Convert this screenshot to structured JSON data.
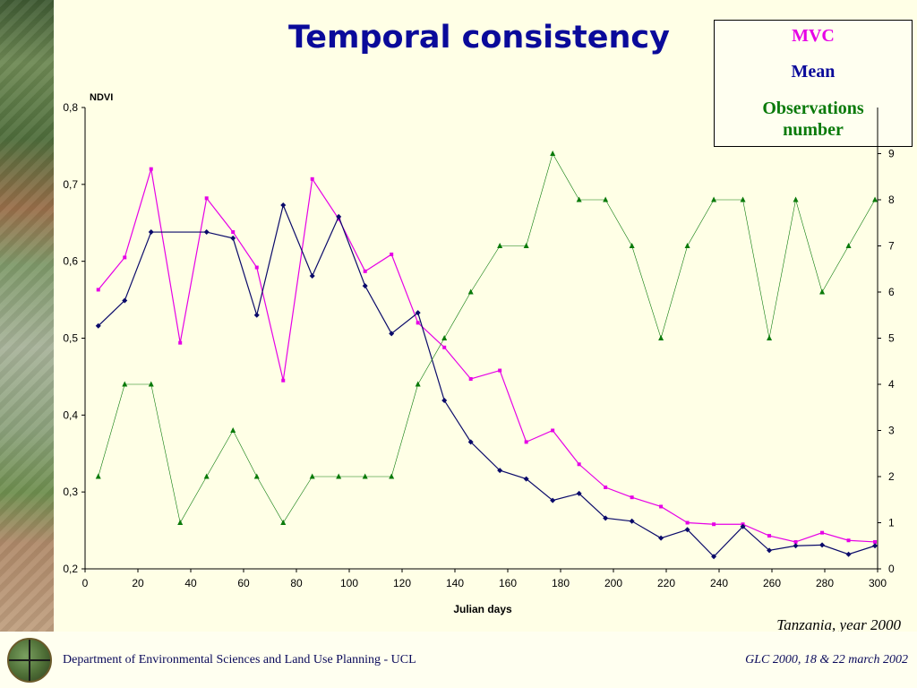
{
  "slide": {
    "title": "Temporal consistency",
    "caption": "Tanzania, year 2000",
    "footer_left": "Department of Environmental Sciences and Land Use Planning - UCL",
    "footer_right": "GLC 2000,   18 & 22 march 2002"
  },
  "legend": {
    "items": [
      {
        "label": "MVC",
        "color": "#e600e6"
      },
      {
        "label": "Mean",
        "color": "#0a0a9a"
      },
      {
        "label": "Observations\nnumber",
        "color": "#0a7a0a"
      }
    ]
  },
  "chart_data": {
    "type": "line",
    "xlabel": "Julian days",
    "ylabel": "NDVI",
    "xlim": [
      0,
      300
    ],
    "ylim": [
      0.2,
      0.8
    ],
    "y2lim": [
      0,
      10
    ],
    "x_ticks": [
      "0",
      "20",
      "40",
      "60",
      "80",
      "100",
      "120",
      "140",
      "160",
      "180",
      "200",
      "220",
      "240",
      "260",
      "280",
      "300"
    ],
    "y_ticks": [
      "0,2",
      "0,3",
      "0,4",
      "0,5",
      "0,6",
      "0,7",
      "0,8"
    ],
    "y2_ticks": [
      "0",
      "1",
      "2",
      "3",
      "4",
      "5",
      "6",
      "7",
      "8",
      "9"
    ],
    "grid": false,
    "series": [
      {
        "name": "MVC",
        "color": "#e600e6",
        "marker": "square",
        "axis": "left",
        "points": [
          [
            5,
            0.563
          ],
          [
            15,
            0.605
          ],
          [
            25,
            0.72
          ],
          [
            36,
            0.494
          ],
          [
            46,
            0.682
          ],
          [
            56,
            0.638
          ],
          [
            65,
            0.592
          ],
          [
            75,
            0.445
          ],
          [
            86,
            0.707
          ],
          [
            96,
            0.655
          ],
          [
            106,
            0.587
          ],
          [
            116,
            0.609
          ],
          [
            126,
            0.52
          ],
          [
            136,
            0.488
          ],
          [
            146,
            0.447
          ],
          [
            157,
            0.458
          ],
          [
            167,
            0.365
          ],
          [
            177,
            0.38
          ],
          [
            187,
            0.336
          ],
          [
            197,
            0.306
          ],
          [
            207,
            0.293
          ],
          [
            218,
            0.281
          ],
          [
            228,
            0.26
          ],
          [
            238,
            0.258
          ],
          [
            249,
            0.258
          ],
          [
            259,
            0.243
          ],
          [
            269,
            0.235
          ],
          [
            279,
            0.247
          ],
          [
            289,
            0.237
          ],
          [
            299,
            0.235
          ]
        ]
      },
      {
        "name": "Mean",
        "color": "#0a0a6a",
        "marker": "diamond",
        "axis": "left",
        "points": [
          [
            5,
            0.516
          ],
          [
            15,
            0.549
          ],
          [
            25,
            0.638
          ],
          [
            46,
            0.638
          ],
          [
            56,
            0.63
          ],
          [
            65,
            0.53
          ],
          [
            75,
            0.673
          ],
          [
            86,
            0.581
          ],
          [
            96,
            0.658
          ],
          [
            106,
            0.568
          ],
          [
            116,
            0.506
          ],
          [
            126,
            0.533
          ],
          [
            136,
            0.419
          ],
          [
            146,
            0.365
          ],
          [
            157,
            0.328
          ],
          [
            167,
            0.317
          ],
          [
            177,
            0.289
          ],
          [
            187,
            0.298
          ],
          [
            197,
            0.266
          ],
          [
            207,
            0.262
          ],
          [
            218,
            0.24
          ],
          [
            228,
            0.251
          ],
          [
            238,
            0.216
          ],
          [
            249,
            0.255
          ],
          [
            259,
            0.224
          ],
          [
            269,
            0.23
          ],
          [
            279,
            0.231
          ],
          [
            289,
            0.219
          ],
          [
            299,
            0.23
          ]
        ]
      },
      {
        "name": "Observations number",
        "color": "#0a7a0a",
        "marker": "triangle",
        "axis": "right",
        "points": [
          [
            5,
            2
          ],
          [
            15,
            4
          ],
          [
            25,
            4
          ],
          [
            36,
            1
          ],
          [
            46,
            2
          ],
          [
            56,
            3
          ],
          [
            65,
            2
          ],
          [
            75,
            1
          ],
          [
            86,
            2
          ],
          [
            96,
            2
          ],
          [
            106,
            2
          ],
          [
            116,
            2
          ],
          [
            126,
            4
          ],
          [
            136,
            5
          ],
          [
            146,
            6
          ],
          [
            157,
            7
          ],
          [
            167,
            7
          ],
          [
            177,
            9
          ],
          [
            187,
            8
          ],
          [
            197,
            8
          ],
          [
            207,
            7
          ],
          [
            218,
            5
          ],
          [
            228,
            7
          ],
          [
            238,
            8
          ],
          [
            249,
            8
          ],
          [
            259,
            5
          ],
          [
            269,
            8
          ],
          [
            279,
            6
          ],
          [
            289,
            7
          ],
          [
            299,
            8
          ]
        ]
      }
    ]
  }
}
